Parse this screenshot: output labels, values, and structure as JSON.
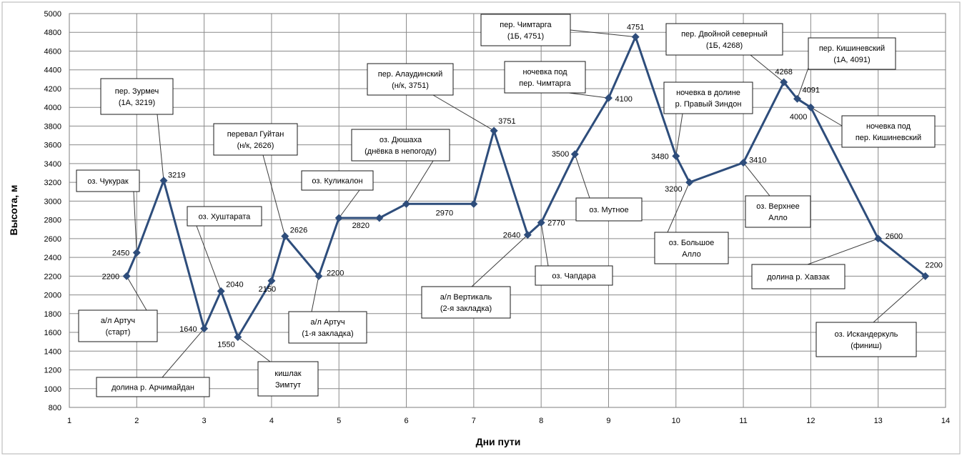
{
  "chart_data": {
    "type": "line",
    "xlabel": "Дни пути",
    "ylabel": "Высота, м",
    "xlim": [
      1,
      14
    ],
    "ylim": [
      800,
      5000
    ],
    "xticks": [
      1,
      2,
      3,
      4,
      5,
      6,
      7,
      8,
      9,
      10,
      11,
      12,
      13,
      14
    ],
    "yticks": [
      800,
      1000,
      1200,
      1400,
      1600,
      1800,
      2000,
      2200,
      2400,
      2600,
      2800,
      3000,
      3200,
      3400,
      3600,
      3800,
      4000,
      4200,
      4400,
      4600,
      4800,
      5000
    ],
    "grid": "vertical and horizontal",
    "colors": {
      "line": "#2e4d7b",
      "grid": "#8a8a8a",
      "frame": "#b0b0b0"
    },
    "points": [
      {
        "x": 1.85,
        "y": 2200,
        "label": "2200"
      },
      {
        "x": 2.0,
        "y": 2450,
        "label": "2450"
      },
      {
        "x": 2.4,
        "y": 3219,
        "label": "3219"
      },
      {
        "x": 3.0,
        "y": 1640,
        "label": "1640"
      },
      {
        "x": 3.25,
        "y": 2040,
        "label": "2040"
      },
      {
        "x": 3.5,
        "y": 1550,
        "label": "1550"
      },
      {
        "x": 4.0,
        "y": 2150,
        "label": "2150"
      },
      {
        "x": 4.2,
        "y": 2626,
        "label": "2626"
      },
      {
        "x": 4.7,
        "y": 2200,
        "label": "2200"
      },
      {
        "x": 5.0,
        "y": 2820,
        "label": ""
      },
      {
        "x": 5.6,
        "y": 2820,
        "label": "2820"
      },
      {
        "x": 6.0,
        "y": 2970,
        "label": ""
      },
      {
        "x": 7.0,
        "y": 2970,
        "label": "2970"
      },
      {
        "x": 7.3,
        "y": 3751,
        "label": "3751"
      },
      {
        "x": 7.8,
        "y": 2640,
        "label": "2640"
      },
      {
        "x": 8.0,
        "y": 2770,
        "label": "2770"
      },
      {
        "x": 8.5,
        "y": 3500,
        "label": "3500"
      },
      {
        "x": 9.0,
        "y": 4100,
        "label": "4100"
      },
      {
        "x": 9.4,
        "y": 4751,
        "label": "4751"
      },
      {
        "x": 10.0,
        "y": 3480,
        "label": "3480"
      },
      {
        "x": 10.2,
        "y": 3200,
        "label": "3200"
      },
      {
        "x": 11.0,
        "y": 3410,
        "label": "3410"
      },
      {
        "x": 11.6,
        "y": 4268,
        "label": "4268"
      },
      {
        "x": 11.8,
        "y": 4091,
        "label": "4091"
      },
      {
        "x": 12.0,
        "y": 4000,
        "label": "4000"
      },
      {
        "x": 13.0,
        "y": 2600,
        "label": "2600"
      },
      {
        "x": 13.7,
        "y": 2200,
        "label": "2200"
      }
    ],
    "annotations": [
      {
        "lines": [
          "а/л Артуч",
          "(старт)"
        ],
        "target": 0
      },
      {
        "lines": [
          "оз. Чукурак"
        ],
        "target": 1
      },
      {
        "lines": [
          "пер. Зурмеч",
          "(1А, 3219)"
        ],
        "target": 2
      },
      {
        "lines": [
          "долина р. Арчимайдан"
        ],
        "target": 3
      },
      {
        "lines": [
          "оз. Хуштарата"
        ],
        "target": 4
      },
      {
        "lines": [
          "кишлак",
          "Зимтут"
        ],
        "target": 5
      },
      {
        "lines": [
          "перевал Гуйтан",
          "(н/к, 2626)"
        ],
        "target": 7
      },
      {
        "lines": [
          "а/л Артуч",
          "(1-я закладка)"
        ],
        "target": 8
      },
      {
        "lines": [
          "оз. Куликалон"
        ],
        "target": 9
      },
      {
        "lines": [
          "оз. Дюшаха",
          "(днёвка в непогоду)"
        ],
        "target": 11
      },
      {
        "lines": [
          "пер. Алаудинский",
          "(н/к, 3751)"
        ],
        "target": 13
      },
      {
        "lines": [
          "а/л Вертикаль",
          "(2-я закладка)"
        ],
        "target": 14
      },
      {
        "lines": [
          "оз. Чапдара"
        ],
        "target": 15
      },
      {
        "lines": [
          "оз. Мутное"
        ],
        "target": 16
      },
      {
        "lines": [
          "ночевка под",
          "пер. Чимтарга"
        ],
        "target": 17
      },
      {
        "lines": [
          "пер. Чимтарга",
          "(1Б, 4751)"
        ],
        "target": 18
      },
      {
        "lines": [
          "ночевка в долине",
          "р. Правый Зиндон"
        ],
        "target": 19
      },
      {
        "lines": [
          "оз. Большое",
          "Алло"
        ],
        "target": 20
      },
      {
        "lines": [
          "оз. Верхнее",
          "Алло"
        ],
        "target": 21
      },
      {
        "lines": [
          "пер. Двойной северный",
          "(1Б, 4268)"
        ],
        "target": 22
      },
      {
        "lines": [
          "пер. Кишиневский",
          "(1А, 4091)"
        ],
        "target": 23
      },
      {
        "lines": [
          "ночевка под",
          "пер. Кишиневский"
        ],
        "target": 24
      },
      {
        "lines": [
          "долина р. Хавзак"
        ],
        "target": 25
      },
      {
        "lines": [
          "оз. Искандеркуль",
          "(финиш)"
        ],
        "target": 26
      }
    ]
  }
}
